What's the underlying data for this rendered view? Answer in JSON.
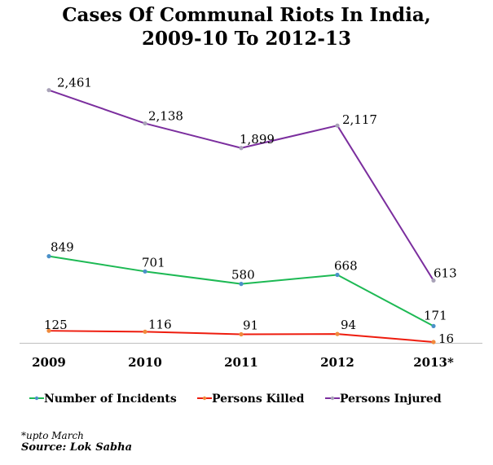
{
  "title_line1": "Cases Of Communal Riots In India,",
  "title_line2": "2009-10 To 2012-13",
  "footnote": "*upto March",
  "source": "Source: Lok Sabha",
  "chart_data": {
    "type": "line",
    "title": "Cases Of Communal Riots In India, 2009-10 To 2012-13",
    "categories": [
      "2009",
      "2010",
      "2011",
      "2012",
      "2013*"
    ],
    "ylim": [
      0,
      2600
    ],
    "grid": false,
    "legend": "bottom",
    "series": [
      {
        "name": "Number of Incidents",
        "color": "#1db954",
        "marker_color": "#4a90c8",
        "values": [
          849,
          701,
          580,
          668,
          171
        ],
        "labels": [
          "849",
          "701",
          "580",
          "668",
          "171"
        ]
      },
      {
        "name": "Persons Killed",
        "color": "#ee1c0e",
        "marker_color": "#f08a3c",
        "values": [
          125,
          116,
          91,
          94,
          16
        ],
        "labels": [
          "125",
          "116",
          "91",
          "94",
          "16"
        ]
      },
      {
        "name": "Persons Injured",
        "color": "#7b2e9e",
        "marker_color": "#a9a2b8",
        "values": [
          2461,
          2138,
          1899,
          2117,
          613
        ],
        "labels": [
          "2,461",
          "2,138",
          "1,899",
          "2,117",
          "613"
        ]
      }
    ]
  }
}
